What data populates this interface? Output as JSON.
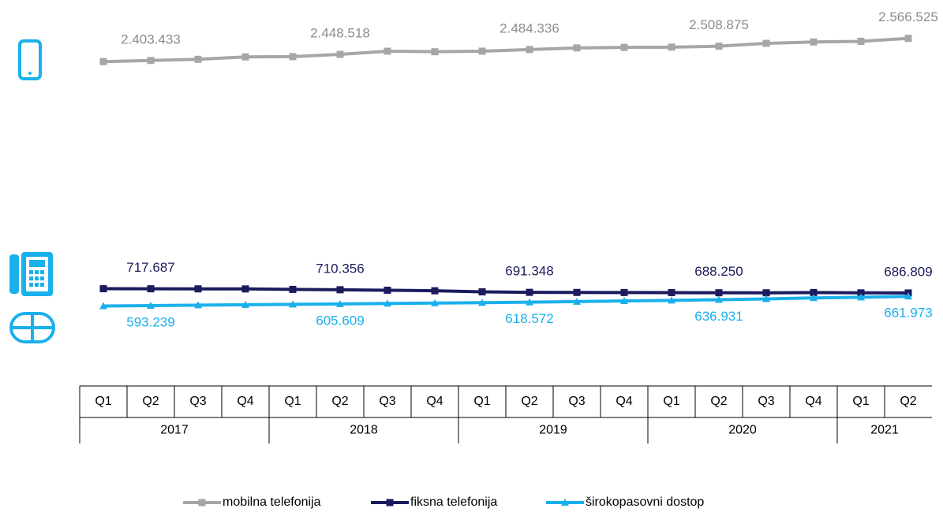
{
  "chart_data": {
    "type": "line",
    "categories": [
      "Q1",
      "Q2",
      "Q3",
      "Q4",
      "Q1",
      "Q2",
      "Q3",
      "Q4",
      "Q1",
      "Q2",
      "Q3",
      "Q4",
      "Q1",
      "Q2",
      "Q3",
      "Q4",
      "Q1",
      "Q2"
    ],
    "years": [
      "2017",
      "2018",
      "2019",
      "2020",
      "2021"
    ],
    "ylim": [
      0,
      2850000
    ],
    "series": [
      {
        "name": "mobilna telefonija",
        "color": "#a6a6a6",
        "marker": "square",
        "label_color": "#8c8c8c",
        "label_position": "above",
        "values": [
          2395000,
          2403433,
          2412000,
          2430000,
          2432000,
          2448518,
          2472000,
          2468000,
          2472000,
          2484336,
          2496000,
          2500000,
          2502000,
          2508875,
          2530000,
          2540000,
          2545000,
          2566525
        ],
        "value_labels": [
          null,
          "2.403.433",
          null,
          null,
          null,
          "2.448.518",
          null,
          null,
          null,
          "2.484.336",
          null,
          null,
          null,
          "2.508.875",
          null,
          null,
          null,
          "2.566.525"
        ]
      },
      {
        "name": "fiksna telefonija",
        "color": "#1b1b5e",
        "marker": "square",
        "label_color": "#1b1b5e",
        "label_position": "above",
        "values": [
          718000,
          717687,
          717000,
          716500,
          713000,
          710356,
          707000,
          703000,
          695000,
          691348,
          690500,
          690000,
          689500,
          688250,
          688000,
          690000,
          687500,
          686809
        ],
        "value_labels": [
          null,
          "717.687",
          null,
          null,
          null,
          "710.356",
          null,
          null,
          null,
          "691.348",
          null,
          null,
          null,
          "688.250",
          null,
          null,
          null,
          "686.809"
        ]
      },
      {
        "name": "širokopasovni dostop",
        "color": "#1ab0ec",
        "marker": "triangle",
        "label_color": "#1ab0ec",
        "label_position": "below",
        "values": [
          590000,
          593239,
          597000,
          600000,
          603000,
          605609,
          609000,
          612000,
          615000,
          618572,
          623000,
          628000,
          632000,
          636931,
          643000,
          650000,
          655000,
          661973
        ],
        "value_labels": [
          null,
          "593.239",
          null,
          null,
          null,
          "605.609",
          null,
          null,
          null,
          "618.572",
          null,
          null,
          null,
          "636.931",
          null,
          null,
          null,
          "661.973"
        ]
      }
    ]
  }
}
